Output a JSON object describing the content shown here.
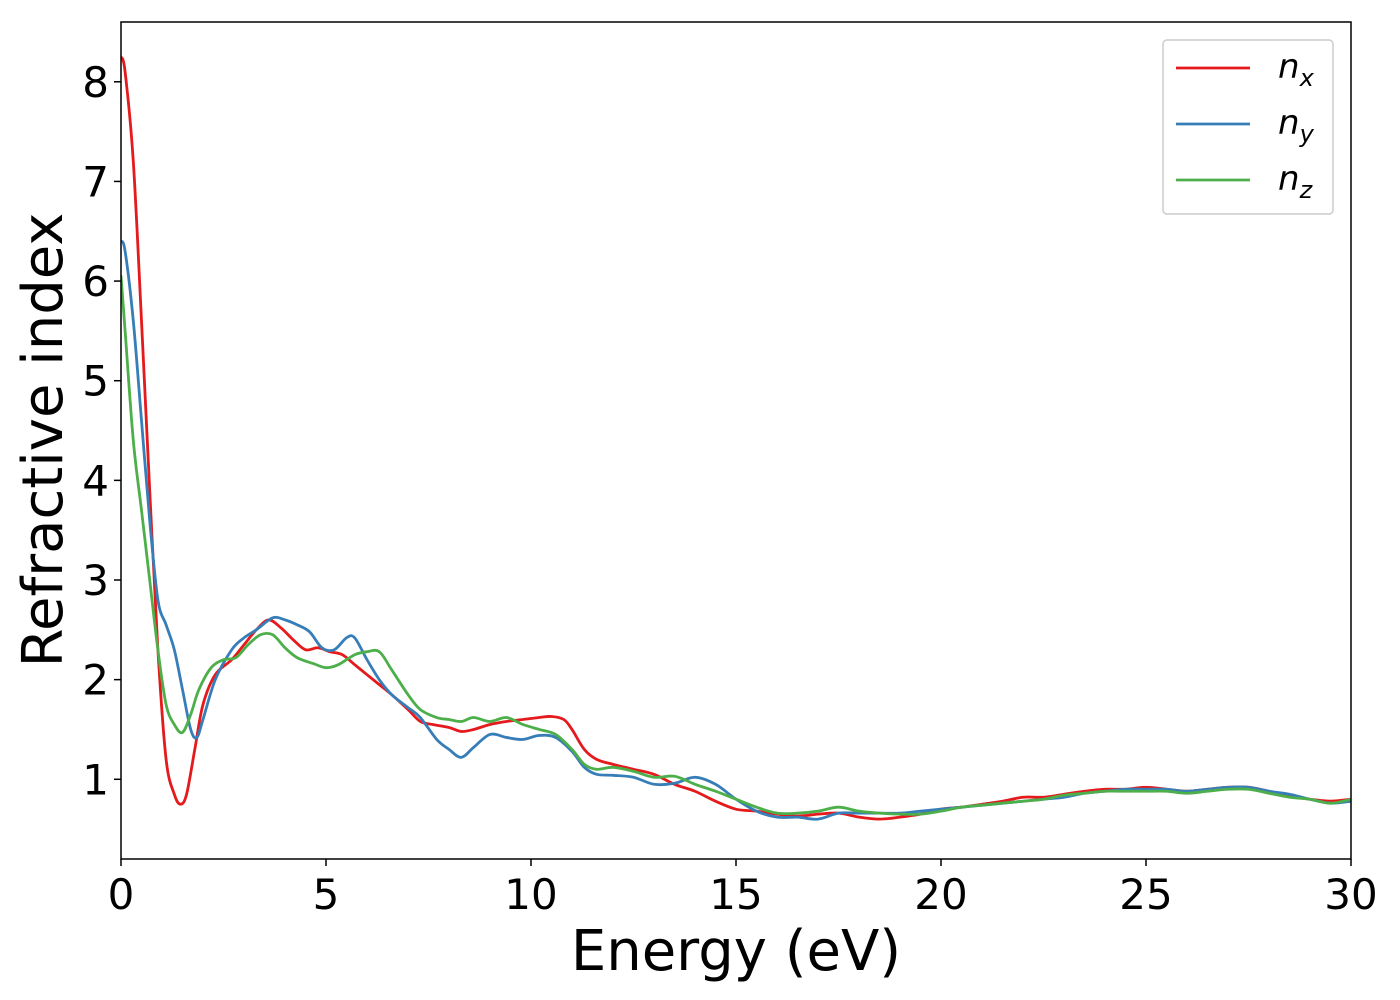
{
  "chart_data": {
    "type": "line",
    "title": "",
    "xlabel": "Energy (eV)",
    "ylabel": "Refractive index",
    "xlim": [
      0,
      30
    ],
    "ylim": [
      0.2,
      8.6
    ],
    "xticks": [
      0,
      5,
      10,
      15,
      20,
      25,
      30
    ],
    "yticks": [
      1,
      2,
      3,
      4,
      5,
      6,
      7,
      8
    ],
    "grid": false,
    "legend_position": "top-right",
    "series": [
      {
        "name": "n",
        "subscript": "x",
        "color": "#e41a1c",
        "x": [
          0,
          0.1,
          0.3,
          0.5,
          0.7,
          0.9,
          1.1,
          1.3,
          1.45,
          1.6,
          1.8,
          2.0,
          2.3,
          2.7,
          3.0,
          3.3,
          3.6,
          3.9,
          4.2,
          4.5,
          4.8,
          5.1,
          5.4,
          5.7,
          6.0,
          6.3,
          6.6,
          7.0,
          7.3,
          7.6,
          8.0,
          8.3,
          8.6,
          9.0,
          9.4,
          9.8,
          10.2,
          10.5,
          10.8,
          11.0,
          11.3,
          11.6,
          12.0,
          12.5,
          13.0,
          13.5,
          14.0,
          14.5,
          15.0,
          15.5,
          16.0,
          16.5,
          17.0,
          17.5,
          18.0,
          18.5,
          19.0,
          19.5,
          20.0,
          20.5,
          21.0,
          21.5,
          22.0,
          22.5,
          23.0,
          23.5,
          24.0,
          24.5,
          25.0,
          25.5,
          26.0,
          26.5,
          27.0,
          27.5,
          28.0,
          28.5,
          29.0,
          29.5,
          30.0
        ],
        "values": [
          8.25,
          8.1,
          7.2,
          5.6,
          3.9,
          2.3,
          1.2,
          0.85,
          0.75,
          0.85,
          1.3,
          1.75,
          2.05,
          2.2,
          2.35,
          2.5,
          2.6,
          2.52,
          2.4,
          2.3,
          2.32,
          2.28,
          2.25,
          2.15,
          2.05,
          1.95,
          1.85,
          1.7,
          1.58,
          1.55,
          1.52,
          1.48,
          1.5,
          1.55,
          1.58,
          1.6,
          1.62,
          1.63,
          1.6,
          1.5,
          1.3,
          1.2,
          1.15,
          1.1,
          1.05,
          0.95,
          0.88,
          0.78,
          0.7,
          0.68,
          0.65,
          0.63,
          0.65,
          0.66,
          0.62,
          0.6,
          0.62,
          0.65,
          0.7,
          0.72,
          0.75,
          0.78,
          0.82,
          0.82,
          0.85,
          0.88,
          0.9,
          0.9,
          0.92,
          0.9,
          0.88,
          0.9,
          0.92,
          0.92,
          0.88,
          0.83,
          0.8,
          0.78,
          0.8
        ]
      },
      {
        "name": "n",
        "subscript": "y",
        "color": "#377eb8",
        "x": [
          0,
          0.1,
          0.3,
          0.5,
          0.7,
          0.9,
          1.1,
          1.3,
          1.5,
          1.7,
          1.85,
          2.0,
          2.3,
          2.7,
          3.0,
          3.3,
          3.7,
          4.0,
          4.3,
          4.6,
          4.9,
          5.2,
          5.5,
          5.7,
          6.0,
          6.3,
          6.6,
          7.0,
          7.3,
          7.7,
          8.0,
          8.3,
          8.6,
          9.0,
          9.4,
          9.8,
          10.2,
          10.6,
          11.0,
          11.3,
          11.6,
          12.0,
          12.5,
          13.0,
          13.5,
          14.0,
          14.5,
          15.0,
          15.5,
          16.0,
          16.5,
          17.0,
          17.5,
          18.0,
          18.5,
          19.0,
          19.5,
          20.0,
          20.5,
          21.0,
          21.5,
          22.0,
          22.5,
          23.0,
          23.5,
          24.0,
          24.5,
          25.0,
          25.5,
          26.0,
          26.5,
          27.0,
          27.5,
          28.0,
          28.5,
          29.0,
          29.5,
          30.0
        ],
        "values": [
          6.4,
          6.3,
          5.6,
          4.6,
          3.6,
          2.8,
          2.55,
          2.3,
          1.9,
          1.5,
          1.42,
          1.6,
          2.0,
          2.3,
          2.42,
          2.5,
          2.62,
          2.6,
          2.55,
          2.48,
          2.32,
          2.3,
          2.42,
          2.42,
          2.2,
          2.0,
          1.85,
          1.72,
          1.62,
          1.4,
          1.3,
          1.22,
          1.32,
          1.45,
          1.42,
          1.4,
          1.44,
          1.42,
          1.28,
          1.12,
          1.05,
          1.04,
          1.02,
          0.95,
          0.96,
          1.02,
          0.95,
          0.8,
          0.68,
          0.62,
          0.62,
          0.6,
          0.66,
          0.66,
          0.66,
          0.66,
          0.68,
          0.7,
          0.72,
          0.74,
          0.76,
          0.78,
          0.8,
          0.82,
          0.86,
          0.88,
          0.9,
          0.9,
          0.9,
          0.88,
          0.9,
          0.92,
          0.92,
          0.88,
          0.85,
          0.8,
          0.76,
          0.78
        ]
      },
      {
        "name": "n",
        "subscript": "z",
        "color": "#4daf4a",
        "x": [
          0,
          0.1,
          0.3,
          0.5,
          0.7,
          0.9,
          1.1,
          1.3,
          1.5,
          1.7,
          1.9,
          2.2,
          2.5,
          2.8,
          3.1,
          3.4,
          3.7,
          4.0,
          4.3,
          4.7,
          5.0,
          5.3,
          5.7,
          6.0,
          6.3,
          6.6,
          7.0,
          7.3,
          7.7,
          8.0,
          8.3,
          8.6,
          9.0,
          9.4,
          9.8,
          10.2,
          10.6,
          11.0,
          11.3,
          11.6,
          12.0,
          12.5,
          13.0,
          13.5,
          14.0,
          14.5,
          15.0,
          15.5,
          16.0,
          16.5,
          17.0,
          17.5,
          18.0,
          18.5,
          19.0,
          19.5,
          20.0,
          20.5,
          21.0,
          21.5,
          22.0,
          22.5,
          23.0,
          23.5,
          24.0,
          24.5,
          25.0,
          25.5,
          26.0,
          26.5,
          27.0,
          27.5,
          28.0,
          28.5,
          29.0,
          29.5,
          30.0
        ],
        "values": [
          6.05,
          5.5,
          4.4,
          3.7,
          3.0,
          2.3,
          1.75,
          1.55,
          1.47,
          1.65,
          1.9,
          2.12,
          2.2,
          2.22,
          2.35,
          2.45,
          2.45,
          2.32,
          2.22,
          2.16,
          2.12,
          2.15,
          2.25,
          2.28,
          2.28,
          2.1,
          1.85,
          1.7,
          1.62,
          1.6,
          1.58,
          1.62,
          1.58,
          1.62,
          1.55,
          1.5,
          1.45,
          1.3,
          1.15,
          1.1,
          1.12,
          1.08,
          1.02,
          1.03,
          0.95,
          0.88,
          0.8,
          0.72,
          0.66,
          0.66,
          0.68,
          0.72,
          0.68,
          0.66,
          0.65,
          0.65,
          0.68,
          0.72,
          0.74,
          0.76,
          0.78,
          0.8,
          0.84,
          0.86,
          0.88,
          0.88,
          0.88,
          0.88,
          0.86,
          0.88,
          0.9,
          0.9,
          0.86,
          0.82,
          0.8,
          0.76,
          0.8
        ]
      }
    ]
  }
}
